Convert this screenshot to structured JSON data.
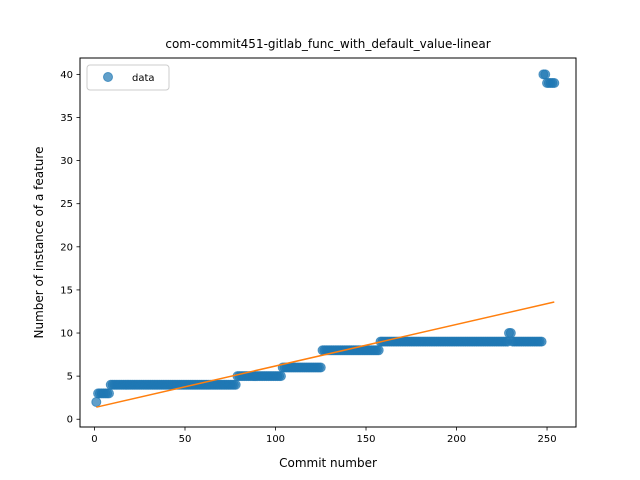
{
  "chart_data": {
    "type": "scatter",
    "title": "com-commit451-gitlab_func_with_default_value-linear",
    "xlabel": "Commit number",
    "ylabel": "Number of instance of a feature",
    "xlim": [
      -8,
      266
    ],
    "ylim": [
      -0.9,
      41.9
    ],
    "xticks": [
      0,
      50,
      100,
      150,
      200,
      250
    ],
    "yticks": [
      0,
      5,
      10,
      15,
      20,
      25,
      30,
      35,
      40
    ],
    "grid": false,
    "legend": {
      "position": "upper-left",
      "entries": [
        "data"
      ]
    },
    "colors": {
      "data": "#1f77b4",
      "fit": "#ff7f0e"
    },
    "series": [
      {
        "name": "data",
        "kind": "scatter",
        "segments": [
          {
            "from": 1,
            "to": 1,
            "y": 2
          },
          {
            "from": 2,
            "to": 8,
            "y": 3
          },
          {
            "from": 9,
            "to": 78,
            "y": 4
          },
          {
            "from": 79,
            "to": 103,
            "y": 5
          },
          {
            "from": 104,
            "to": 125,
            "y": 6
          },
          {
            "from": 126,
            "to": 157,
            "y": 8
          },
          {
            "from": 158,
            "to": 228,
            "y": 9
          },
          {
            "from": 229,
            "to": 230,
            "y": 10
          },
          {
            "from": 231,
            "to": 247,
            "y": 9
          },
          {
            "from": 248,
            "to": 249,
            "y": 40
          },
          {
            "from": 250,
            "to": 254,
            "y": 39
          }
        ]
      },
      {
        "kind": "line",
        "x": [
          1,
          254
        ],
        "y": [
          1.4,
          13.6
        ]
      }
    ]
  }
}
